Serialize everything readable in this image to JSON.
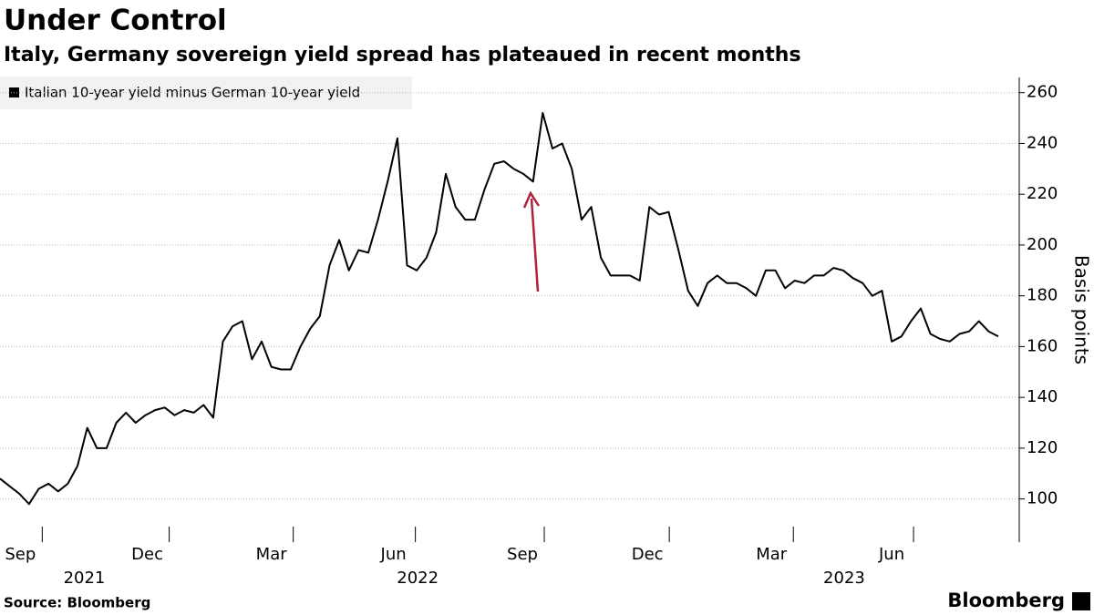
{
  "chart_data": {
    "type": "line",
    "title": "Under Control",
    "subtitle": "Italy, Germany sovereign yield spread has plateaued in recent months",
    "y_label": "Basis points",
    "source": "Source: Bloomberg",
    "brand": "Bloomberg",
    "categories": [
      null,
      null,
      null,
      null,
      null,
      null,
      null,
      null,
      null,
      null,
      null,
      null,
      null,
      null,
      null,
      null,
      null,
      null,
      null,
      null,
      null,
      null,
      null,
      null,
      null,
      null,
      null,
      null,
      null,
      null,
      null,
      null,
      null,
      null,
      null,
      null,
      null,
      null,
      null,
      null,
      null,
      null,
      null,
      null,
      null,
      null,
      null,
      null,
      null,
      null,
      null,
      null,
      null,
      null,
      null,
      null,
      null,
      null,
      null,
      null,
      null,
      null,
      null,
      null,
      null,
      null,
      null,
      null,
      null,
      null,
      null,
      null,
      null,
      null,
      null,
      null,
      null,
      null,
      null,
      null,
      null,
      null,
      null,
      null,
      null,
      null,
      null,
      null,
      null,
      null,
      null,
      null,
      null,
      null,
      null,
      null,
      null,
      null,
      null,
      null,
      null,
      null,
      null,
      null
    ],
    "series": [
      {
        "name": "Italian 10-year yield minus German 10-year yield",
        "color": "#000000",
        "values": [
          108,
          105,
          102,
          98,
          104,
          106,
          103,
          106,
          113,
          128,
          120,
          120,
          130,
          134,
          130,
          133,
          135,
          136,
          133,
          135,
          134,
          137,
          132,
          162,
          168,
          170,
          155,
          162,
          152,
          151,
          151,
          160,
          167,
          172,
          192,
          202,
          190,
          198,
          197,
          210,
          225,
          242,
          192,
          190,
          195,
          205,
          228,
          215,
          210,
          210,
          222,
          232,
          233,
          230,
          228,
          225,
          252,
          238,
          240,
          230,
          210,
          215,
          195,
          188,
          188,
          188,
          186,
          215,
          212,
          213,
          198,
          182,
          176,
          185,
          188,
          185,
          185,
          183,
          180,
          190,
          190,
          183,
          186,
          185,
          188,
          188,
          191,
          190,
          187,
          185,
          180,
          182,
          162,
          164,
          170,
          175,
          165,
          163,
          162,
          165,
          166,
          170,
          166,
          164
        ]
      }
    ],
    "xlim": [
      0,
      103
    ],
    "xticks": [
      {
        "value": 2.1,
        "label": "Sep"
      },
      {
        "value": 15.2,
        "label": "Dec"
      },
      {
        "value": 28.0,
        "label": "Mar"
      },
      {
        "value": 40.6,
        "label": "Jun"
      },
      {
        "value": 53.9,
        "label": "Sep"
      },
      {
        "value": 66.8,
        "label": "Dec"
      },
      {
        "value": 79.6,
        "label": "Mar"
      },
      {
        "value": 92.0,
        "label": "Jun"
      }
    ],
    "years": [
      {
        "value": 8.7,
        "label": "2021"
      },
      {
        "value": 43.1,
        "label": "2022"
      },
      {
        "value": 87.1,
        "label": "2023"
      }
    ],
    "ylim": [
      83,
      266
    ],
    "yticks": [
      100,
      120,
      140,
      160,
      180,
      200,
      220,
      240,
      260
    ],
    "grid": true
  }
}
